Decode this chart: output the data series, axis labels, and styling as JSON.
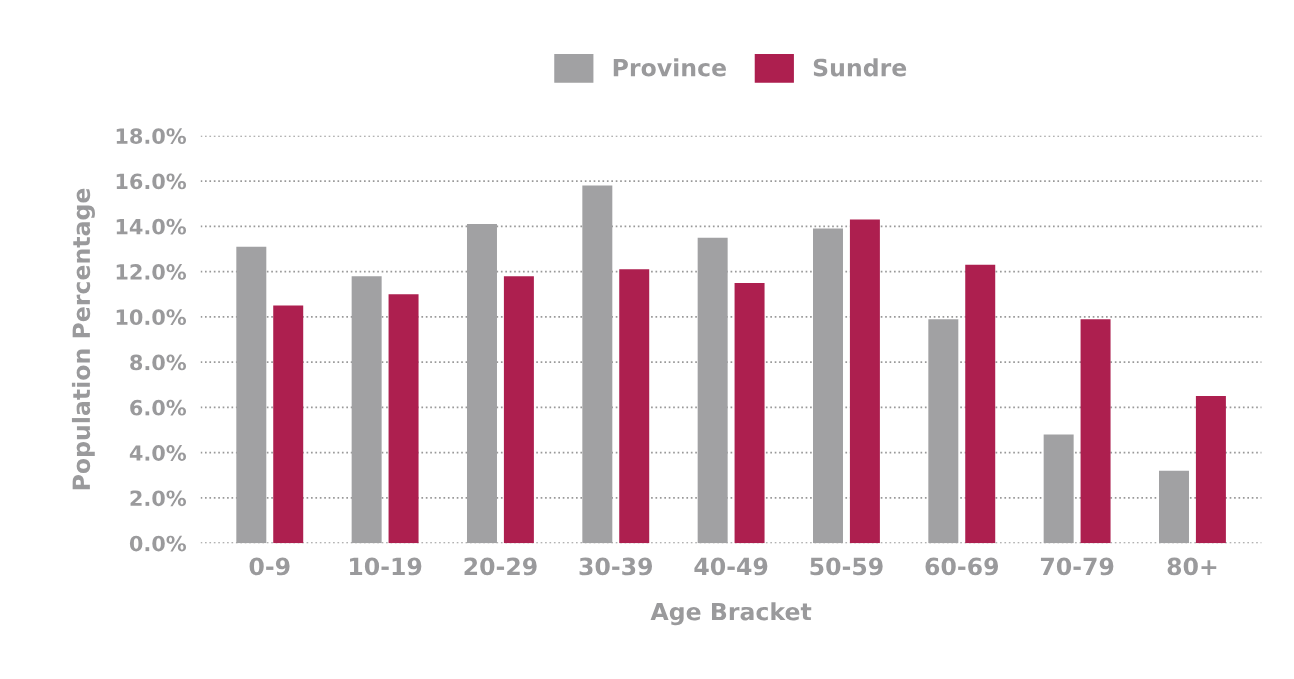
{
  "chart_data": {
    "type": "bar",
    "xlabel": "Age Bracket",
    "ylabel": "Population Percentage",
    "categories": [
      "0-9",
      "10-19",
      "20-29",
      "30-39",
      "40-49",
      "50-59",
      "60-69",
      "70-79",
      "80+"
    ],
    "series": [
      {
        "name": "Province",
        "color": "#a1a1a3",
        "values": [
          13.1,
          11.8,
          14.1,
          15.8,
          13.5,
          13.9,
          9.9,
          4.8,
          3.2
        ]
      },
      {
        "name": "Sundre",
        "color": "#ad1f4f",
        "values": [
          10.5,
          11.0,
          11.8,
          12.1,
          11.5,
          14.3,
          12.3,
          9.9,
          6.5
        ]
      }
    ],
    "ylim": [
      0,
      18
    ],
    "yticks": [
      {
        "value": 0,
        "label": "0.0%"
      },
      {
        "value": 2,
        "label": "2.0%"
      },
      {
        "value": 4,
        "label": "4.0%"
      },
      {
        "value": 6,
        "label": "6.0%"
      },
      {
        "value": 8,
        "label": "8.0%"
      },
      {
        "value": 10,
        "label": "10.0%"
      },
      {
        "value": 12,
        "label": "12.0%"
      },
      {
        "value": 14,
        "label": "14.0%"
      },
      {
        "value": 16,
        "label": "16.0%"
      },
      {
        "value": 18,
        "label": "18.0%"
      }
    ],
    "grid": "y",
    "legend": "top"
  }
}
